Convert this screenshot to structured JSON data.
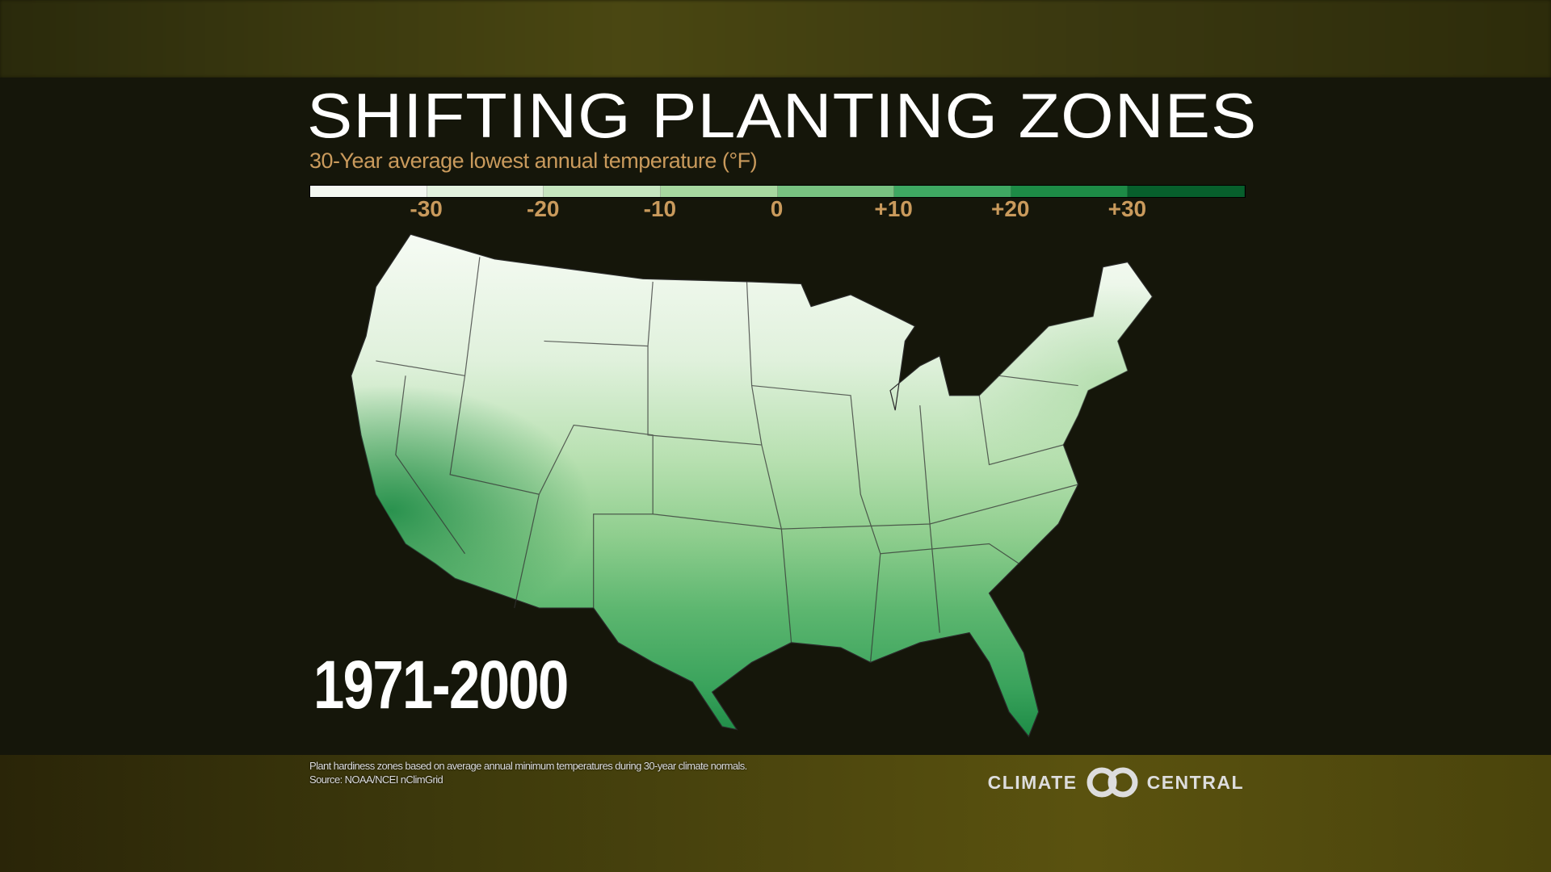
{
  "chart_data": {
    "type": "heatmap",
    "title": "SHIFTING PLANTING ZONES",
    "subtitle": "30-Year average lowest annual temperature (°F)",
    "legend": {
      "tick_labels": [
        "-30",
        "-20",
        "-10",
        "0",
        "+10",
        "+20",
        "+30"
      ],
      "bins": [
        -40,
        -30,
        -20,
        -10,
        0,
        10,
        20,
        30,
        40
      ],
      "colors": [
        "#f4f8f2",
        "#e3f2df",
        "#c6e6c0",
        "#a7d8a0",
        "#78c281",
        "#3ea862",
        "#1d8b46",
        "#075f2c"
      ]
    },
    "period": "1971-2000",
    "region": "Contiguous United States"
  },
  "footer": {
    "note": "Plant hardiness zones based on average annual minimum temperatures during 30-year climate normals.",
    "source": "Source: NOAA/NCEI nClimGrid"
  },
  "logo": {
    "left": "CLIMATE",
    "right": "CENTRAL"
  }
}
